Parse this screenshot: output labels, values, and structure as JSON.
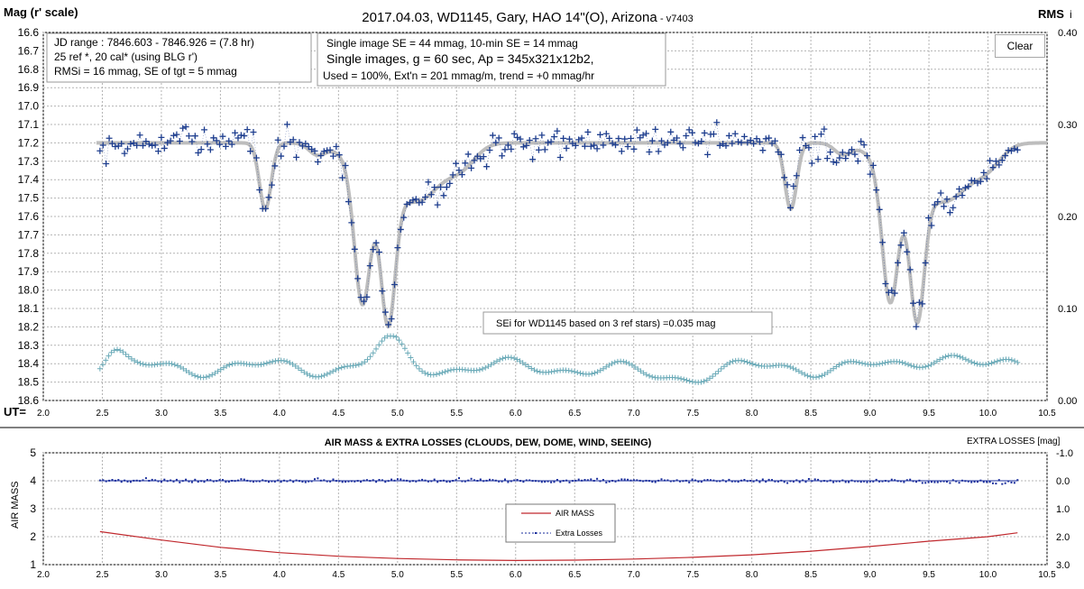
{
  "chart_data": [
    {
      "type": "scatter",
      "title": "2017.04.03,  WD1145, Gary, HAO  14\"(O), Arizona",
      "version": "- v7403",
      "ylabel": "Mag (r' scale)",
      "y2label": "RMS",
      "y2label_sub": "i",
      "xlabel": "UT=",
      "xlim": [
        2.0,
        10.5
      ],
      "ylim": [
        16.6,
        18.6
      ],
      "y_inverted": true,
      "y2lim": [
        0.0,
        0.4
      ],
      "x_ticks": [
        "2.0",
        "2.5",
        "3.0",
        "3.5",
        "4.0",
        "4.5",
        "5.0",
        "5.5",
        "6.0",
        "6.5",
        "7.0",
        "7.5",
        "8.0",
        "8.5",
        "9.0",
        "9.5",
        "10.0",
        "10.5"
      ],
      "y_ticks": [
        "16.6",
        "16.7",
        "16.8",
        "16.9",
        "17.0",
        "17.1",
        "17.2",
        "17.3",
        "17.4",
        "17.5",
        "17.6",
        "17.7",
        "17.8",
        "17.9",
        "18.0",
        "18.1",
        "18.2",
        "18.3",
        "18.4",
        "18.5",
        "18.6"
      ],
      "y2_ticks": [
        "0.00",
        "0.10",
        "0.20",
        "0.30",
        "0.40"
      ],
      "grid": true,
      "info_box_left": [
        "JD range  : 7846.603 - 7846.926  = (7.8 hr)",
        "25 ref *, 20 cal* (using BLG r')",
        "RMSi = 16 mmag, SE of tgt = 5 mmag"
      ],
      "info_box_center": [
        "Single image SE = 44 mmag, 10-min SE = 14 mmag",
        "Single images, g = 60 sec, Ap = 345x321x12b2,",
        "Used = 100%, Ext'n = 201 mmag/m, trend = +0 mmag/hr"
      ],
      "annotation": "SEi for WD1145 based on 3 ref stars) =0.035 mag",
      "clear_button": "Clear",
      "series": [
        {
          "name": "WD1145 magnitude",
          "marker": "+",
          "color": "#1f3f8f",
          "baseline_mag": 17.2,
          "scatter_mag": 0.04,
          "x_start": 2.48,
          "x_end": 10.25,
          "n_points": 300
        },
        {
          "name": "Model fit",
          "color": "#bdbdbd",
          "baseline_mag": 17.2,
          "x_start": 2.45,
          "x_end": 10.5,
          "dips": [
            {
              "center": 3.88,
              "depth": 0.36,
              "width": 0.05
            },
            {
              "center": 4.32,
              "depth": 0.06,
              "width": 0.07
            },
            {
              "center": 4.7,
              "depth": 0.68,
              "width": 0.065
            },
            {
              "center": 4.92,
              "depth": 0.72,
              "width": 0.06
            },
            {
              "center": 4.78,
              "depth": 0.2,
              "width": 0.18
            },
            {
              "center": 5.18,
              "depth": 0.3,
              "width": 0.2
            },
            {
              "center": 5.55,
              "depth": 0.1,
              "width": 0.12
            },
            {
              "center": 8.33,
              "depth": 0.36,
              "width": 0.05
            },
            {
              "center": 8.77,
              "depth": 0.06,
              "width": 0.07
            },
            {
              "center": 9.17,
              "depth": 0.67,
              "width": 0.065
            },
            {
              "center": 9.4,
              "depth": 0.7,
              "width": 0.06
            },
            {
              "center": 9.25,
              "depth": 0.2,
              "width": 0.18
            },
            {
              "center": 9.65,
              "depth": 0.3,
              "width": 0.2
            },
            {
              "center": 10.0,
              "depth": 0.1,
              "width": 0.12
            }
          ]
        },
        {
          "name": "RMS",
          "marker": "+",
          "color": "#6aaab8",
          "axis": "y2",
          "x_start": 2.48,
          "x_end": 10.25,
          "n_points": 320,
          "y_mag_equivalent_range": [
            18.25,
            18.51
          ]
        }
      ]
    },
    {
      "type": "line",
      "title": "AIR MASS & EXTRA LOSSES (CLOUDS, DEW, DOME, WIND, SEEING)",
      "ylabel": "AIR MASS",
      "y2label": "EXTRA LOSSES [mag]",
      "xlim": [
        2.0,
        10.5
      ],
      "ylim": [
        1,
        5
      ],
      "y2lim": [
        3.0,
        -1.0
      ],
      "x_ticks": [
        "2.0",
        "2.5",
        "3.0",
        "3.5",
        "4.0",
        "4.5",
        "5.0",
        "5.5",
        "6.0",
        "6.5",
        "7.0",
        "7.5",
        "8.0",
        "8.5",
        "9.0",
        "9.5",
        "10.0",
        "10.5"
      ],
      "y_ticks": [
        "1",
        "2",
        "3",
        "4",
        "5"
      ],
      "y2_ticks": [
        "3.0",
        "2.0",
        "1.0",
        "0.0",
        "-1.0"
      ],
      "grid": true,
      "legend": [
        "AIR MASS",
        "Extra Losses"
      ],
      "legend_position": "center",
      "series": [
        {
          "name": "AIR MASS",
          "color": "#c0282d",
          "x": [
            2.48,
            3.0,
            3.5,
            4.0,
            4.5,
            5.0,
            5.5,
            6.0,
            6.5,
            7.0,
            7.5,
            8.0,
            8.5,
            9.0,
            9.5,
            10.0,
            10.25
          ],
          "y": [
            2.18,
            1.88,
            1.62,
            1.43,
            1.3,
            1.22,
            1.17,
            1.15,
            1.16,
            1.2,
            1.26,
            1.35,
            1.48,
            1.65,
            1.84,
            2.0,
            2.14
          ]
        },
        {
          "name": "Extra Losses",
          "color": "#1a2e9c",
          "axis": "y2",
          "x_start": 2.48,
          "x_end": 10.25,
          "baseline": 0.0,
          "scatter": 0.03
        }
      ]
    }
  ]
}
